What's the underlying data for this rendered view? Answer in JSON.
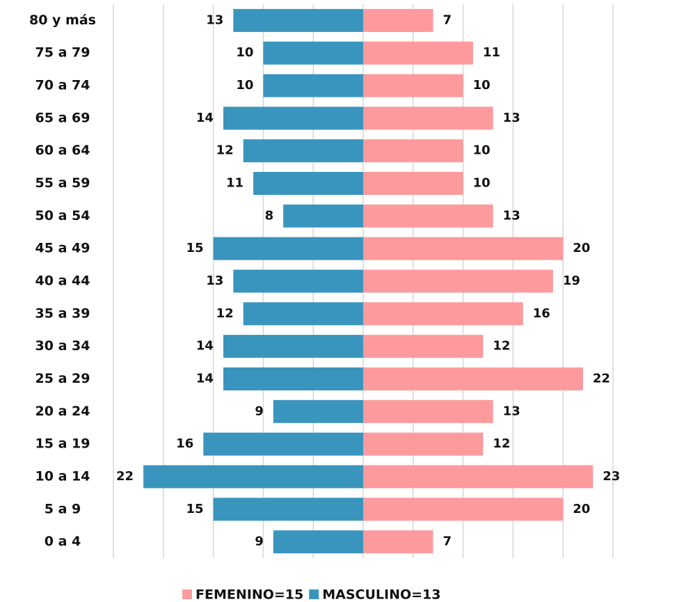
{
  "chart_data": {
    "type": "pyramid",
    "categories": [
      "80 y más",
      "75 a 79",
      "70 a 74",
      "65 a 69",
      "60 a 64",
      "55 a 59",
      "50 a 54",
      "45 a 49",
      "40 a 44",
      "35 a 39",
      "30 a 34",
      "25 a 29",
      "20 a 24",
      "15 a 19",
      "10 a 14",
      "5 a 9",
      "0 a 4"
    ],
    "series": [
      {
        "name": "FEMENINO=15",
        "color": "#fd9a9d",
        "values": [
          7,
          11,
          10,
          13,
          10,
          10,
          13,
          20,
          19,
          16,
          12,
          22,
          13,
          12,
          23,
          20,
          7
        ]
      },
      {
        "name": "MASCULINO=13",
        "color": "#3a95be",
        "values": [
          13,
          10,
          10,
          14,
          12,
          11,
          8,
          15,
          13,
          12,
          14,
          14,
          9,
          16,
          22,
          15,
          9
        ]
      }
    ],
    "xlim": [
      -25,
      25
    ],
    "xticks": [
      -25,
      -20,
      -15,
      -10,
      -5,
      0,
      5,
      10,
      15,
      20,
      25
    ],
    "grid": true
  }
}
